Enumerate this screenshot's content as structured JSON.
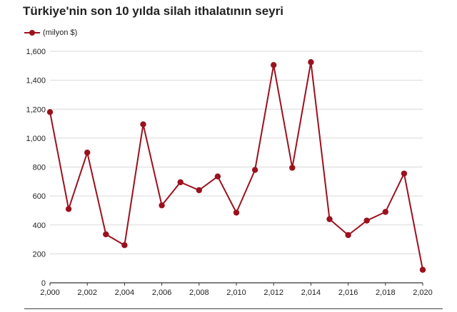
{
  "chart_data": {
    "type": "line",
    "title": "Türkiye'nin son 10 yılda silah ithalatının seyri",
    "xlabel": "",
    "ylabel": "",
    "x": [
      2000,
      2001,
      2002,
      2003,
      2004,
      2005,
      2006,
      2007,
      2008,
      2009,
      2010,
      2011,
      2012,
      2013,
      2014,
      2015,
      2016,
      2017,
      2018,
      2019,
      2020
    ],
    "x_tick_labels": [
      "2,000",
      "2,002",
      "2,004",
      "2,006",
      "2,008",
      "2,010",
      "2,012",
      "2,014",
      "2,016",
      "2,018",
      "2,020"
    ],
    "y_tick_labels": [
      "0",
      "200",
      "400",
      "600",
      "800",
      "1,000",
      "1,200",
      "1,400",
      "1,600"
    ],
    "ylim": [
      0,
      1600
    ],
    "xlim": [
      2000,
      2020
    ],
    "grid": true,
    "legend_position": "top-left",
    "series": [
      {
        "name": "(milyon $)",
        "color": "#9b111e",
        "values": [
          1180,
          510,
          900,
          335,
          260,
          1095,
          535,
          695,
          640,
          735,
          485,
          780,
          1505,
          795,
          1525,
          440,
          330,
          430,
          490,
          755,
          90
        ]
      }
    ]
  }
}
